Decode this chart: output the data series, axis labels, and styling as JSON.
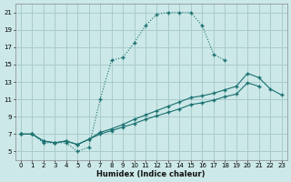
{
  "xlabel": "Humidex (Indice chaleur)",
  "background_color": "#cce8e8",
  "grid_color": "#aacccc",
  "line_color": "#1a7070",
  "xlim": [
    -0.5,
    23.5
  ],
  "ylim": [
    4.0,
    22.0
  ],
  "xticks": [
    0,
    1,
    2,
    3,
    4,
    5,
    6,
    7,
    8,
    9,
    10,
    11,
    12,
    13,
    14,
    15,
    16,
    17,
    18,
    19,
    20,
    21,
    22,
    23
  ],
  "yticks": [
    5,
    7,
    9,
    11,
    13,
    15,
    17,
    19,
    21
  ],
  "line1_x": [
    0,
    1,
    2,
    3,
    4,
    5,
    6,
    7,
    8,
    9,
    10,
    11,
    12,
    13,
    14,
    15,
    16,
    17,
    18
  ],
  "line1_y": [
    7,
    7,
    6,
    6,
    6,
    5,
    5.5,
    11,
    15.5,
    15.8,
    17.5,
    19.5,
    20.8,
    21,
    21,
    21,
    19.5,
    16.2,
    15.5
  ],
  "line1_style": "dotted",
  "line2_x": [
    0,
    1,
    2,
    3,
    4,
    5,
    6,
    7,
    8,
    9,
    10,
    11,
    12,
    13,
    14,
    15,
    16,
    17,
    18,
    19,
    20,
    21,
    22,
    23
  ],
  "line2_y": [
    7,
    7,
    6.2,
    6.0,
    6.2,
    5.8,
    6.4,
    7.2,
    7.6,
    8.1,
    8.7,
    9.2,
    9.7,
    10.2,
    10.7,
    11.2,
    11.4,
    11.7,
    12.1,
    12.5,
    14.0,
    13.5,
    12.2,
    11.5
  ],
  "line2_style": "solid",
  "line3_x": [
    0,
    1,
    2,
    3,
    4,
    5,
    6,
    7,
    8,
    9,
    10,
    11,
    12,
    13,
    14,
    15,
    16,
    17,
    18,
    19,
    20,
    21,
    22,
    23
  ],
  "line3_y": [
    7,
    7,
    6.2,
    6.0,
    6.2,
    5.8,
    6.4,
    7.0,
    7.4,
    7.8,
    8.2,
    8.7,
    9.1,
    9.5,
    9.9,
    10.4,
    10.6,
    10.9,
    11.3,
    11.6,
    12.9,
    12.5,
    null,
    null
  ],
  "line3_style": "solid"
}
